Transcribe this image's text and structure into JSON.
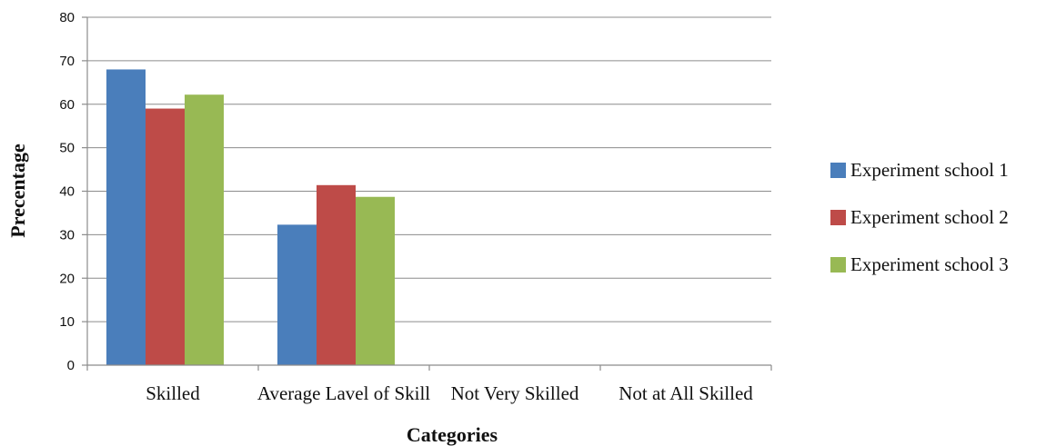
{
  "chart_data": {
    "type": "bar",
    "categories": [
      "Skilled",
      "Average Lavel of Skill",
      "Not Very Skilled",
      "Not at All Skilled"
    ],
    "series": [
      {
        "name": "Experiment school 1",
        "color": "#4a7ebb",
        "values": [
          68,
          32.3,
          0,
          0
        ]
      },
      {
        "name": "Experiment school 2",
        "color": "#be4b48",
        "values": [
          59,
          41.4,
          0,
          0
        ]
      },
      {
        "name": "Experiment school 3",
        "color": "#98b954",
        "values": [
          62.2,
          38.7,
          0,
          0
        ]
      }
    ],
    "xlabel": "Categories",
    "ylabel": "Precentage",
    "ylim": [
      0,
      80
    ],
    "yticks": [
      0,
      10,
      20,
      30,
      40,
      50,
      60,
      70,
      80
    ],
    "grid": true,
    "legend_position": "right"
  }
}
